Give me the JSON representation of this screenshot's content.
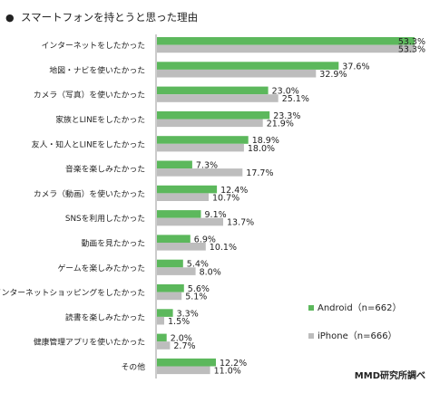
{
  "chart_data": {
    "type": "bar",
    "orientation": "horizontal",
    "title": "スマートフォンを持とうと思った理由",
    "title_marker": "●",
    "categories": [
      "インターネットをしたかった",
      "地図・ナビを使いたかった",
      "カメラ（写真）を使いたかった",
      "家族とLINEをしたかった",
      "友人・知人とLINEをしたかった",
      "音楽を楽しみたかった",
      "カメラ（動画）を使いたかった",
      "SNSを利用したかった",
      "動画を見たかった",
      "ゲームを楽しみたかった",
      "インターネットショッピングをしたかった",
      "読書を楽しみたかった",
      "健康管理アプリを使いたかった",
      "その他"
    ],
    "series": [
      {
        "name": "Android（n=662）",
        "color": "#5cb85c",
        "values": [
          53.3,
          37.6,
          23.0,
          23.3,
          18.9,
          7.3,
          12.4,
          9.1,
          6.9,
          5.4,
          5.6,
          3.3,
          2.0,
          12.2
        ],
        "labels": [
          "53.3%",
          "37.6%",
          "23.0%",
          "23.3%",
          "18.9%",
          "7.3%",
          "12.4%",
          "9.1%",
          "6.9%",
          "5.4%",
          "5.6%",
          "3.3%",
          "2.0%",
          "12.2%"
        ]
      },
      {
        "name": "iPhone（n=666）",
        "color": "#bdbdbd",
        "values": [
          53.3,
          32.9,
          25.1,
          21.9,
          18.0,
          17.7,
          10.7,
          13.7,
          10.1,
          8.0,
          5.1,
          1.5,
          2.7,
          11.0
        ],
        "labels": [
          "53.3%",
          "32.9%",
          "25.1%",
          "21.9%",
          "18.0%",
          "17.7%",
          "10.7%",
          "13.7%",
          "10.1%",
          "8.0%",
          "5.1%",
          "1.5%",
          "2.7%",
          "11.0%"
        ]
      }
    ],
    "xlim": [
      0,
      53.3
    ],
    "grid": false,
    "legend_position": "bottom-right",
    "source": "MMD研究所調べ"
  }
}
